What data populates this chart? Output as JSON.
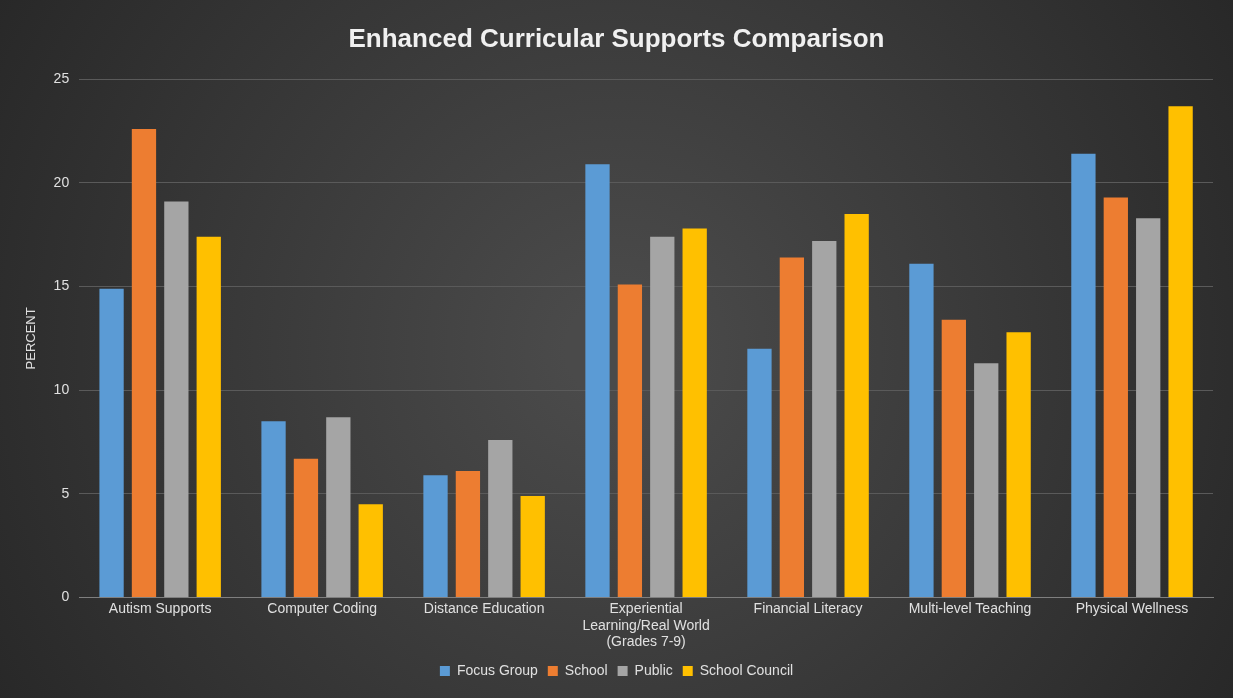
{
  "chart_data": {
    "type": "bar",
    "title": "Enhanced Curricular Supports Comparison",
    "ylabel": "PERCENT",
    "categories": [
      "Autism Supports",
      "Computer Coding",
      "Distance Education",
      "Experiential Learning/Real World (Grades 7-9)",
      "Financial Literacy",
      "Multi-level Teaching",
      "Physical Wellness"
    ],
    "series": [
      {
        "name": "Focus Group",
        "color": "#5b9bd5",
        "values": [
          14.9,
          8.5,
          5.9,
          20.9,
          12.0,
          16.1,
          21.4
        ]
      },
      {
        "name": "School",
        "color": "#ed7d31",
        "values": [
          22.6,
          6.7,
          6.1,
          15.1,
          16.4,
          13.4,
          19.3
        ]
      },
      {
        "name": "Public",
        "color": "#a5a5a5",
        "values": [
          19.1,
          8.7,
          7.6,
          17.4,
          17.2,
          11.3,
          18.3
        ]
      },
      {
        "name": "School Council",
        "color": "#ffc000",
        "values": [
          17.4,
          4.5,
          4.9,
          17.8,
          18.5,
          12.8,
          23.7
        ]
      }
    ],
    "ylim": [
      0,
      25
    ],
    "yticks": [
      0,
      5,
      10,
      15,
      20,
      25
    ],
    "grid": "y",
    "legend": "bottom"
  }
}
